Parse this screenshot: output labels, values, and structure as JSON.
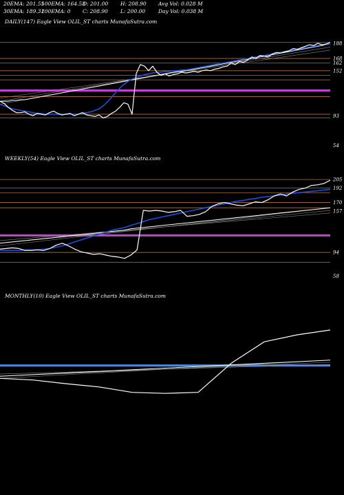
{
  "header": {
    "row1": [
      "20EMA: 201.55",
      "100EMA: 164.53",
      "O: 201.00",
      "H: 208.90",
      "Avg Vol: 0.028  M"
    ],
    "row2": [
      "30EMA: 189.31",
      "200EMA: 0",
      "C: 208.90",
      "L: 200.00",
      "Day Vol: 0.038  M"
    ]
  },
  "colors": {
    "background": "#000000",
    "price": "#ffffff",
    "ema_fast": "#1f4fd8",
    "ema_slow": "#ffffff",
    "support_magenta": "#d13ce0",
    "monthly_blue": "#4f87d9",
    "level_lines": "#b5733a"
  },
  "chart_data": [
    {
      "type": "line",
      "title": "DAILY(147) Eagle   View  OLIL_ST charts MunafaSutra.com",
      "tick_labels": [
        "188",
        "168",
        "162",
        "152",
        "93",
        "54"
      ],
      "level_lines": [
        189,
        168,
        162,
        152,
        146,
        140,
        118,
        95,
        90
      ],
      "support_lines": [
        126
      ],
      "price": [
        112,
        109,
        104,
        100,
        97,
        97,
        98,
        95,
        93,
        96,
        95,
        94,
        97,
        99,
        96,
        94,
        95,
        96,
        93,
        95,
        97,
        94,
        93,
        92,
        94,
        90,
        92,
        96,
        99,
        104,
        110,
        108,
        95,
        148,
        160,
        158,
        152,
        158,
        150,
        146,
        148,
        145,
        147,
        148,
        150,
        149,
        150,
        151,
        150,
        152,
        153,
        152,
        154,
        155,
        157,
        158,
        162,
        160,
        164,
        163,
        166,
        170,
        168,
        172,
        171,
        170,
        174,
        176,
        175,
        177,
        178,
        181,
        180,
        182,
        184,
        186,
        185,
        188,
        186,
        187,
        189
      ],
      "ema_fast": [
        108,
        106,
        104,
        102,
        101,
        100,
        99,
        98,
        97,
        96,
        96,
        95,
        95,
        95,
        95,
        95,
        95,
        95,
        95,
        95,
        96,
        97,
        98,
        100,
        102,
        106,
        111,
        117,
        123,
        129,
        134,
        138,
        141,
        143,
        145,
        147,
        148,
        149,
        150,
        150,
        151,
        151,
        152,
        152,
        153,
        153,
        154,
        155,
        156,
        157,
        158,
        159,
        160,
        161,
        162,
        163,
        164,
        165,
        166,
        167,
        168,
        169,
        170,
        171,
        172,
        173,
        174,
        175,
        176,
        177,
        178,
        179,
        180,
        181,
        182,
        183,
        184,
        185,
        186,
        186,
        187
      ],
      "ema_slow": [
        112,
        112,
        112,
        113,
        113,
        114,
        114,
        115,
        116,
        117,
        118,
        119,
        120,
        121,
        122,
        123,
        124,
        125,
        126,
        127,
        128,
        129,
        130,
        131,
        132,
        133,
        134,
        135,
        136,
        137,
        138,
        139,
        140,
        141,
        142,
        143,
        144,
        145,
        146,
        147,
        148,
        149,
        150,
        151,
        151,
        152,
        153,
        154,
        155,
        156,
        157,
        158,
        159,
        160,
        161,
        162,
        163,
        164,
        165,
        166,
        167,
        168,
        169,
        170,
        171,
        172,
        173,
        174,
        175,
        176,
        177,
        178,
        179,
        180,
        181,
        182,
        183,
        184,
        185,
        186,
        187
      ],
      "ylim": [
        50,
        205
      ]
    },
    {
      "type": "line",
      "title": "WEEKLY(54) Eagle   View  OLIL_ST charts MunafaSutra.com",
      "tick_labels": [
        "205",
        "192",
        "170",
        "157",
        "94",
        "58"
      ],
      "level_lines": [
        205,
        192,
        185,
        170,
        162,
        94,
        79
      ],
      "support_lines": [
        120
      ],
      "price": [
        99,
        100,
        101,
        100,
        97,
        97,
        98,
        97,
        100,
        105,
        108,
        104,
        99,
        95,
        93,
        91,
        92,
        90,
        88,
        87,
        85,
        90,
        98,
        158,
        157,
        158,
        157,
        155,
        156,
        158,
        149,
        150,
        152,
        156,
        164,
        168,
        170,
        168,
        166,
        165,
        168,
        171,
        170,
        174,
        180,
        183,
        180,
        186,
        190,
        192,
        196,
        197,
        199,
        204
      ],
      "ema_fast": [
        97,
        97,
        97,
        97,
        98,
        98,
        98,
        99,
        100,
        102,
        104,
        107,
        110,
        113,
        116,
        119,
        122,
        125,
        128,
        130,
        132,
        135,
        138,
        141,
        144,
        146,
        148,
        150,
        152,
        154,
        156,
        158,
        160,
        162,
        164,
        166,
        168,
        170,
        172,
        173,
        175,
        176,
        178,
        179,
        180,
        181,
        183,
        184,
        185,
        186,
        187,
        188,
        189,
        190
      ],
      "ema_slow": [
        108,
        109,
        110,
        111,
        112,
        113,
        114,
        115,
        116,
        117,
        118,
        119,
        120,
        121,
        122,
        123,
        124,
        125,
        126,
        127,
        128,
        130,
        131,
        132,
        133,
        134,
        135,
        136,
        137,
        138,
        139,
        140,
        141,
        142,
        143,
        144,
        145,
        146,
        147,
        148,
        149,
        150,
        151,
        152,
        153,
        154,
        155,
        156,
        157,
        158,
        159,
        160,
        161,
        162
      ],
      "ylim": [
        45,
        225
      ]
    },
    {
      "type": "line",
      "title": "MONTHLY(10) Eagle   View  OLIL_ST charts MunafaSutra.com",
      "price": [
        124,
        121,
        114,
        108,
        98,
        96,
        98,
        152,
        192,
        205,
        214
      ],
      "ema_slow": [
        128,
        131,
        134,
        137,
        140,
        143,
        146,
        149,
        152,
        155,
        158
      ],
      "support_lines": [
        148
      ],
      "ylim": [
        40,
        260
      ]
    }
  ]
}
